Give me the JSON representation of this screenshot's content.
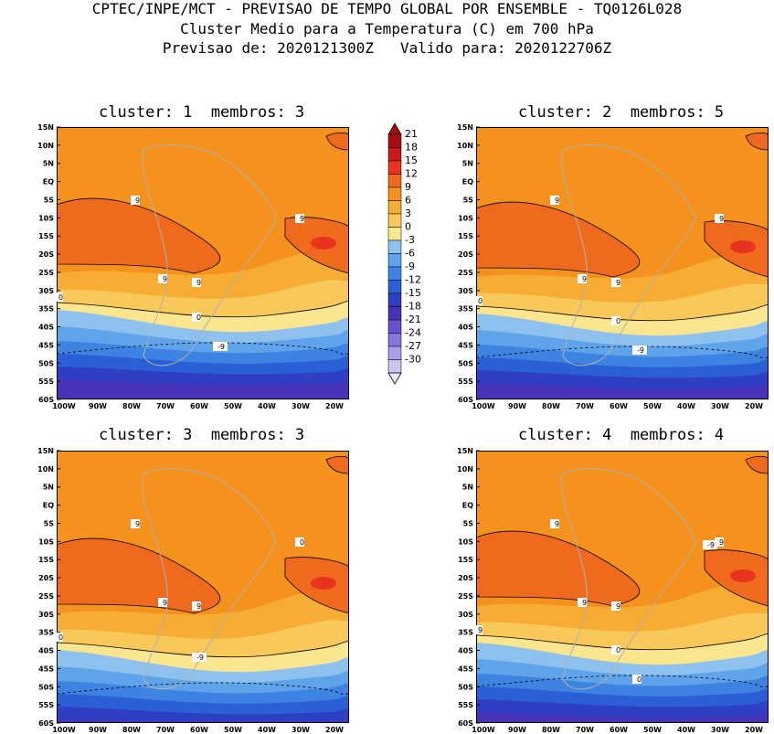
{
  "header": {
    "line1": "CPTEC/INPE/MCT - PREVISAO DE TEMPO GLOBAL POR ENSEMBLE - TQ0126L028",
    "line2": "Cluster Medio para a Temperatura (C) em 700 hPa",
    "line3": "Previsao de: 2020121300Z   Valido para: 2020122706Z"
  },
  "panels": [
    {
      "title": "cluster: 1  membros: 3"
    },
    {
      "title": "cluster: 2  membros: 5"
    },
    {
      "title": "cluster: 3  membros: 3"
    },
    {
      "title": "cluster: 4  membros: 4"
    }
  ],
  "axes": {
    "lat_labels": [
      "15N",
      "10N",
      "5N",
      "EQ",
      "5S",
      "10S",
      "15S",
      "20S",
      "25S",
      "30S",
      "35S",
      "40S",
      "45S",
      "50S",
      "55S",
      "60S"
    ],
    "lon_labels": [
      "100W",
      "90W",
      "80W",
      "70W",
      "60W",
      "50W",
      "40W",
      "30W",
      "20W"
    ]
  },
  "colorbar": {
    "labels": [
      "21",
      "18",
      "15",
      "12",
      "9",
      "6",
      "3",
      "0",
      "-3",
      "-6",
      "-9",
      "-12",
      "-15",
      "-18",
      "-21",
      "-24",
      "-27",
      "-30"
    ],
    "colors": [
      "#a40f14",
      "#cc1a1a",
      "#e8331f",
      "#f06a1e",
      "#f5911d",
      "#f7ad34",
      "#f9c85a",
      "#fbe690",
      "#8fc1ef",
      "#5fa3ea",
      "#3d84e2",
      "#2b5fd6",
      "#2f3fc5",
      "#4633b8",
      "#6a4fcf",
      "#8a74dd",
      "#aa9ee8",
      "#ccc6f1"
    ]
  },
  "contour_labels": {
    "panel1": [
      "9",
      "9",
      "9",
      "9",
      "0",
      "0",
      "-9"
    ],
    "panel2": [
      "9",
      "9",
      "9",
      "9",
      "0",
      "0",
      "-9"
    ],
    "panel3": [
      "9",
      "9",
      "9",
      "0",
      "0",
      "-9"
    ],
    "panel4": [
      "9",
      "9",
      "9",
      "9",
      "9",
      "0",
      "0",
      "-9"
    ]
  }
}
